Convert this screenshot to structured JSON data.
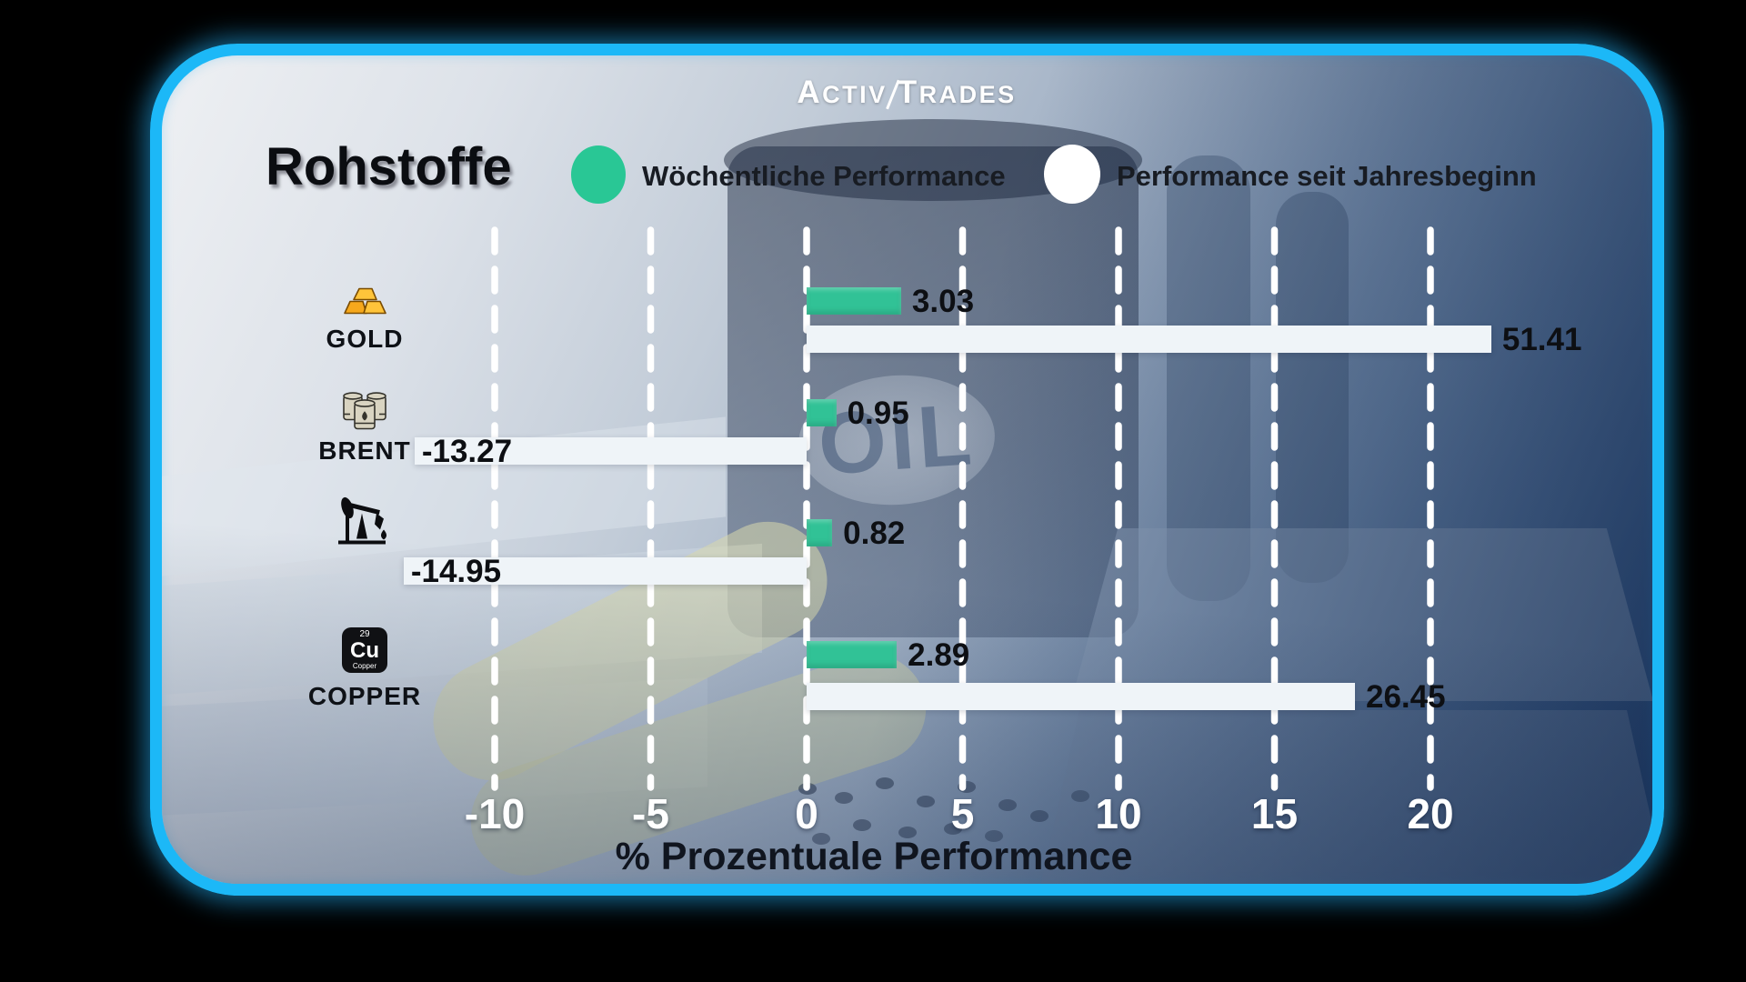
{
  "logo": {
    "part1": "Activ",
    "part2": "Trades"
  },
  "header": {
    "title": "Rohstoffe"
  },
  "legend": {
    "weekly": {
      "label": "Wöchentliche Performance",
      "color": "#29c795"
    },
    "ytd": {
      "label": "Performance seit Jahresbeginn",
      "color": "#ffffff"
    }
  },
  "background": {
    "barrel_text": "OIL"
  },
  "icons": {
    "copper_element": {
      "number": "29",
      "symbol": "Cu",
      "name": "Copper"
    }
  },
  "chart_data": {
    "type": "bar",
    "orientation": "horizontal",
    "title": "Rohstoffe",
    "categories": [
      "GOLD",
      "BRENT",
      "",
      "COPPER"
    ],
    "category_icons": [
      "gold-bars-icon",
      "oil-barrels-icon",
      "oil-pumpjack-icon",
      "copper-element-icon"
    ],
    "series": [
      {
        "name": "Wöchentliche Performance",
        "color": "#31c296",
        "values": [
          3.03,
          0.95,
          0.82,
          2.89
        ]
      },
      {
        "name": "Performance seit Jahresbeginn",
        "color": "#eff4f8",
        "values": [
          51.41,
          -13.27,
          -14.95,
          26.45
        ]
      }
    ],
    "xlabel": "% Prozentuale Performance",
    "x_ticks": [
      -10,
      -5,
      0,
      5,
      10,
      15,
      20
    ],
    "xlim": [
      -13.5,
      22
    ],
    "grid": "dashed-vertical-white",
    "legend_position": "top",
    "ytd_bar_drawn_units": [
      21.95,
      -12.57,
      -12.92,
      17.58
    ],
    "value_decimals": 2
  }
}
